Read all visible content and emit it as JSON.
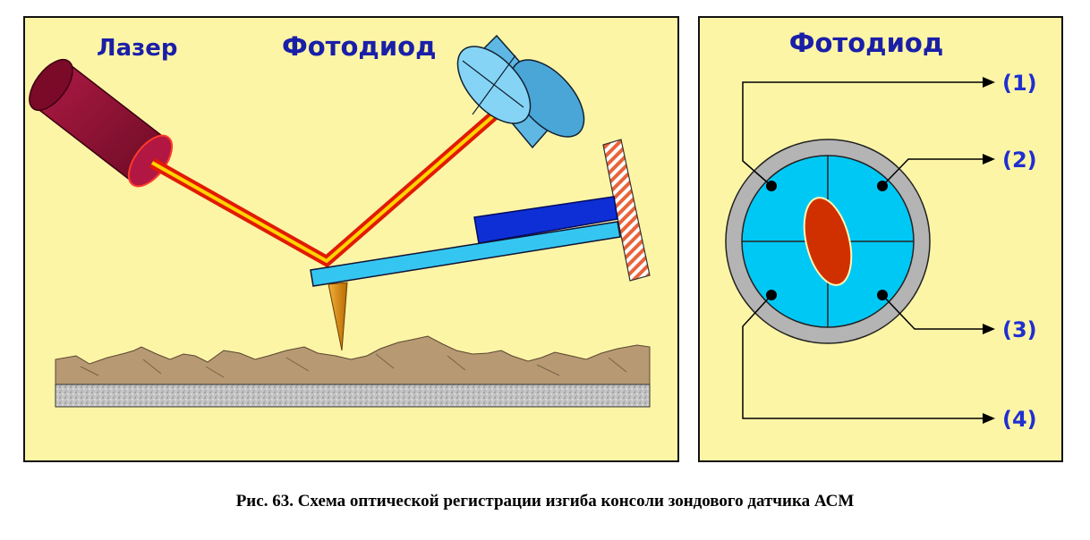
{
  "left_panel": {
    "laser_label": "Лазер",
    "photodiode_label": "Фотодиод"
  },
  "right_panel": {
    "photodiode_label": "Фотодиод",
    "outputs": [
      "(1)",
      "(2)",
      "(3)",
      "(4)"
    ]
  },
  "caption": "Рис. 63. Схема оптической регистрации изгиба консоли зондового датчика АСМ",
  "colors": {
    "panel_bg": "#fdf5a6",
    "label_blue": "#1a1fa8",
    "output_blue": "#1f2fd0",
    "laser_body": "#8c1031",
    "beam_outer": "#e21a00",
    "beam_inner": "#ffd400",
    "photodiode": "#6fc6ee",
    "cantilever": "#34c6f0",
    "piezo": "#0f2fd6",
    "tip": "#e08a00",
    "sample": "#b79a73",
    "substrate": "#b8b8b8",
    "quadrant": "#00c8f5",
    "spot": "#d03000"
  }
}
